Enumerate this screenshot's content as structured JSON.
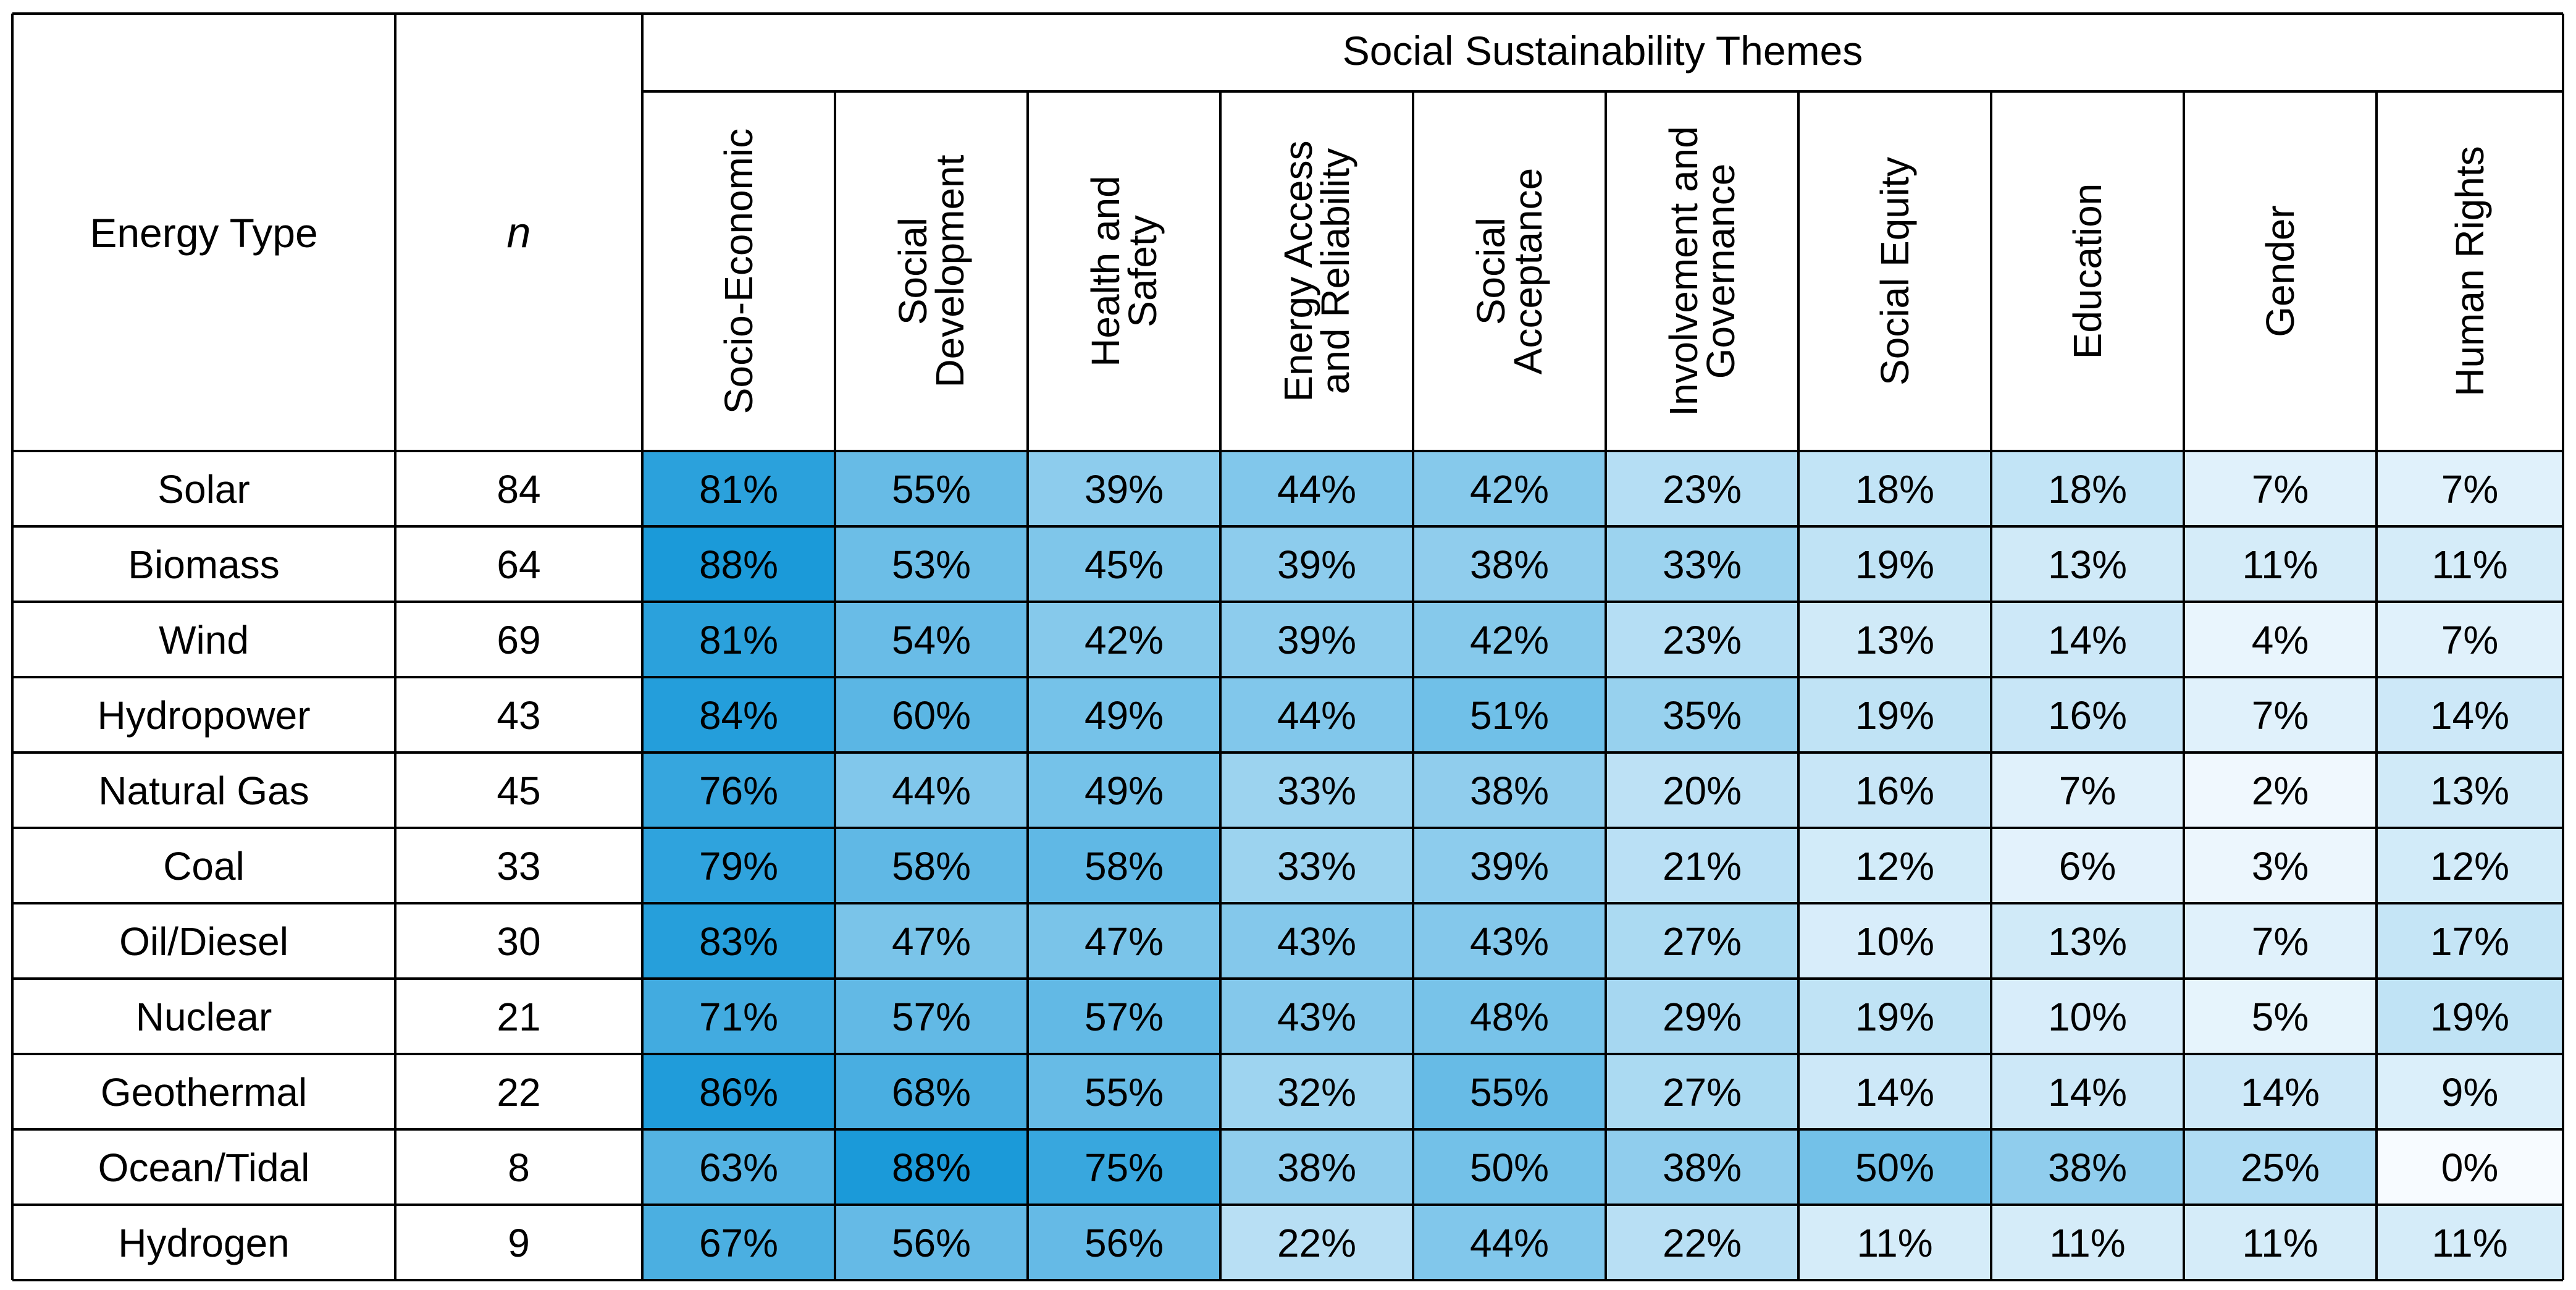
{
  "chart_data": {
    "type": "heatmap",
    "title": "Social Sustainability Themes",
    "row_header": "Energy Type",
    "count_header": "n",
    "columns": [
      [
        "Socio-Economic"
      ],
      [
        "Social",
        "Development"
      ],
      [
        "Health and",
        "Safety"
      ],
      [
        "Energy Access",
        "and Reliability"
      ],
      [
        "Social",
        "Acceptance"
      ],
      [
        "Involvement and",
        "Governance"
      ],
      [
        "Social Equity"
      ],
      [
        "Education"
      ],
      [
        "Gender"
      ],
      [
        "Human Rights"
      ]
    ],
    "rows": [
      {
        "label": "Solar",
        "n": "84",
        "values": [
          81,
          55,
          39,
          44,
          42,
          23,
          18,
          18,
          7,
          7
        ]
      },
      {
        "label": "Biomass",
        "n": "64",
        "values": [
          88,
          53,
          45,
          39,
          38,
          33,
          19,
          13,
          11,
          11
        ]
      },
      {
        "label": "Wind",
        "n": "69",
        "values": [
          81,
          54,
          42,
          39,
          42,
          23,
          13,
          14,
          4,
          7
        ]
      },
      {
        "label": "Hydropower",
        "n": "43",
        "values": [
          84,
          60,
          49,
          44,
          51,
          35,
          19,
          16,
          7,
          14
        ]
      },
      {
        "label": "Natural Gas",
        "n": "45",
        "values": [
          76,
          44,
          49,
          33,
          38,
          20,
          16,
          7,
          2,
          13
        ]
      },
      {
        "label": "Coal",
        "n": "33",
        "values": [
          79,
          58,
          58,
          33,
          39,
          21,
          12,
          6,
          3,
          12
        ]
      },
      {
        "label": "Oil/Diesel",
        "n": "30",
        "values": [
          83,
          47,
          47,
          43,
          43,
          27,
          10,
          13,
          7,
          17
        ]
      },
      {
        "label": "Nuclear",
        "n": "21",
        "values": [
          71,
          57,
          57,
          43,
          48,
          29,
          19,
          10,
          5,
          19
        ]
      },
      {
        "label": "Geothermal",
        "n": "22",
        "values": [
          86,
          68,
          55,
          32,
          55,
          27,
          14,
          14,
          14,
          9
        ]
      },
      {
        "label": "Ocean/Tidal",
        "n": "8",
        "values": [
          63,
          88,
          75,
          38,
          50,
          38,
          50,
          38,
          25,
          0
        ]
      },
      {
        "label": "Hydrogen",
        "n": "9",
        "values": [
          67,
          56,
          56,
          22,
          44,
          22,
          11,
          11,
          11,
          11
        ]
      }
    ],
    "value_suffix": "%",
    "value_range": [
      0,
      100
    ],
    "colors": {
      "low": "#f7fbff",
      "high": "#1b9ad9",
      "border": "#000000",
      "header_fill": "#ffffff"
    }
  }
}
